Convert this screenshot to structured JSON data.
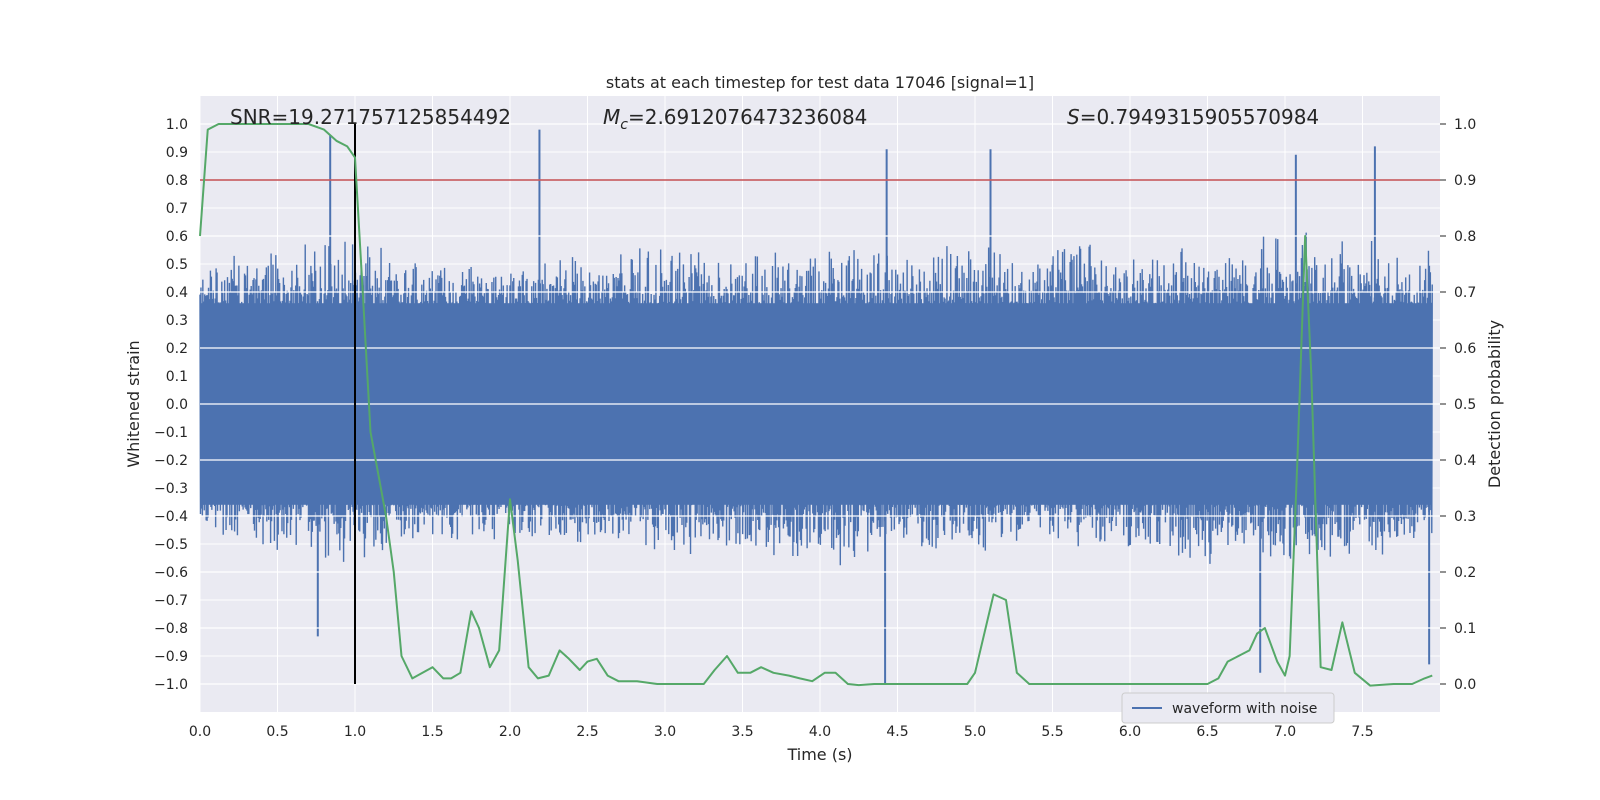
{
  "chart_data": {
    "type": "line",
    "title": "stats at each timestep for test data 17046 [signal=1]",
    "xlabel": "Time (s)",
    "ylabel": "Whitened strain",
    "y2label": "Detection probability",
    "xlim": [
      0.0,
      8.0
    ],
    "ylim": [
      -1.1,
      1.1
    ],
    "y2lim": [
      -0.05,
      1.05
    ],
    "grid": true,
    "legend_position": "lower-right",
    "xticks": [
      "0.0",
      "0.5",
      "1.0",
      "1.5",
      "2.0",
      "2.5",
      "3.0",
      "3.5",
      "4.0",
      "4.5",
      "5.0",
      "5.5",
      "6.0",
      "6.5",
      "7.0",
      "7.5"
    ],
    "yticks": [
      "1.0",
      "0.9",
      "0.8",
      "0.7",
      "0.6",
      "0.5",
      "0.4",
      "0.3",
      "0.2",
      "0.1",
      "0.0",
      "-0.1",
      "-0.2",
      "-0.3",
      "-0.4",
      "-0.5",
      "-0.6",
      "-0.7",
      "-0.8",
      "-0.9",
      "-1.0"
    ],
    "y2ticks": [
      "1.0",
      "0.9",
      "0.8",
      "0.7",
      "0.6",
      "0.5",
      "0.4",
      "0.3",
      "0.2",
      "0.1",
      "0.0"
    ],
    "annotations": {
      "snr": "SNR=19.271757125854492",
      "mc_symbol": "M",
      "mc_sub": "c",
      "mc_value": "=2.6912076473236084",
      "s_symbol": "S",
      "s_value": "=0.7949315905570984"
    },
    "threshold": {
      "value": 0.9,
      "axis": "right",
      "color": "#c44e52"
    },
    "marker_line": {
      "x": 1.0,
      "ymin": -1.0,
      "ymax": 1.0,
      "color": "#000000"
    },
    "series": [
      {
        "name": "waveform with noise",
        "axis": "left",
        "color": "#4c72b0",
        "envelope_x": [
          0.0,
          0.5,
          1.0,
          1.5,
          2.0,
          2.5,
          3.0,
          3.5,
          4.0,
          4.5,
          5.0,
          5.5,
          6.0,
          6.5,
          7.0,
          7.5,
          7.95
        ],
        "envelope_upper": [
          0.55,
          0.58,
          0.6,
          0.55,
          0.5,
          0.55,
          0.6,
          0.55,
          0.6,
          0.55,
          0.6,
          0.6,
          0.6,
          0.6,
          0.65,
          0.6,
          0.55
        ],
        "envelope_lower": [
          -0.45,
          -0.55,
          -0.6,
          -0.5,
          -0.5,
          -0.55,
          -0.55,
          -0.55,
          -0.6,
          -0.55,
          -0.55,
          -0.5,
          -0.55,
          -0.6,
          -0.6,
          -0.6,
          -0.5
        ],
        "peaks": [
          {
            "x": 0.84,
            "y": 0.96
          },
          {
            "x": 1.0,
            "y": 0.82
          },
          {
            "x": 2.19,
            "y": 0.98
          },
          {
            "x": 4.43,
            "y": 0.91
          },
          {
            "x": 5.1,
            "y": 0.91
          },
          {
            "x": 7.07,
            "y": 0.89
          },
          {
            "x": 7.58,
            "y": 0.92
          },
          {
            "x": 0.76,
            "y": -0.83
          },
          {
            "x": 4.42,
            "y": -1.0
          },
          {
            "x": 6.84,
            "y": -0.96
          },
          {
            "x": 7.93,
            "y": -0.93
          }
        ]
      },
      {
        "name": "",
        "axis": "right",
        "color": "#55a868",
        "x": [
          0.0,
          0.05,
          0.12,
          0.3,
          0.5,
          0.7,
          0.8,
          0.88,
          0.95,
          1.0,
          1.05,
          1.1,
          1.2,
          1.25,
          1.3,
          1.37,
          1.5,
          1.57,
          1.62,
          1.68,
          1.75,
          1.8,
          1.87,
          1.93,
          2.0,
          2.05,
          2.12,
          2.18,
          2.25,
          2.32,
          2.38,
          2.45,
          2.5,
          2.56,
          2.63,
          2.7,
          2.82,
          2.95,
          3.1,
          3.25,
          3.32,
          3.4,
          3.47,
          3.55,
          3.62,
          3.7,
          3.8,
          3.87,
          3.95,
          4.03,
          4.1,
          4.18,
          4.25,
          4.35,
          4.45,
          4.6,
          4.75,
          4.95,
          5.0,
          5.12,
          5.2,
          5.27,
          5.35,
          5.5,
          5.75,
          6.0,
          6.25,
          6.5,
          6.57,
          6.63,
          6.7,
          6.77,
          6.82,
          6.87,
          6.95,
          7.0,
          7.03,
          7.08,
          7.13,
          7.17,
          7.23,
          7.3,
          7.37,
          7.45,
          7.55,
          7.7,
          7.82,
          7.9,
          7.95
        ],
        "y": [
          0.8,
          0.99,
          1.0,
          1.0,
          1.0,
          1.0,
          0.99,
          0.97,
          0.96,
          0.94,
          0.7,
          0.45,
          0.3,
          0.2,
          0.05,
          0.01,
          0.03,
          0.01,
          0.01,
          0.02,
          0.13,
          0.1,
          0.03,
          0.06,
          0.33,
          0.22,
          0.03,
          0.01,
          0.015,
          0.06,
          0.045,
          0.025,
          0.04,
          0.045,
          0.015,
          0.005,
          0.005,
          0.0,
          0.0,
          0.0,
          0.025,
          0.05,
          0.02,
          0.02,
          0.03,
          0.02,
          0.015,
          0.01,
          0.005,
          0.02,
          0.02,
          0.0,
          -0.002,
          0.0,
          0.0,
          0.0,
          0.0,
          0.0,
          0.02,
          0.16,
          0.15,
          0.02,
          0.0,
          0.0,
          0.0,
          0.0,
          0.0,
          0.0,
          0.01,
          0.04,
          0.05,
          0.06,
          0.09,
          0.1,
          0.04,
          0.015,
          0.05,
          0.4,
          0.8,
          0.55,
          0.03,
          0.025,
          0.11,
          0.02,
          -0.003,
          0.0,
          0.0,
          0.01,
          0.015
        ]
      }
    ]
  }
}
